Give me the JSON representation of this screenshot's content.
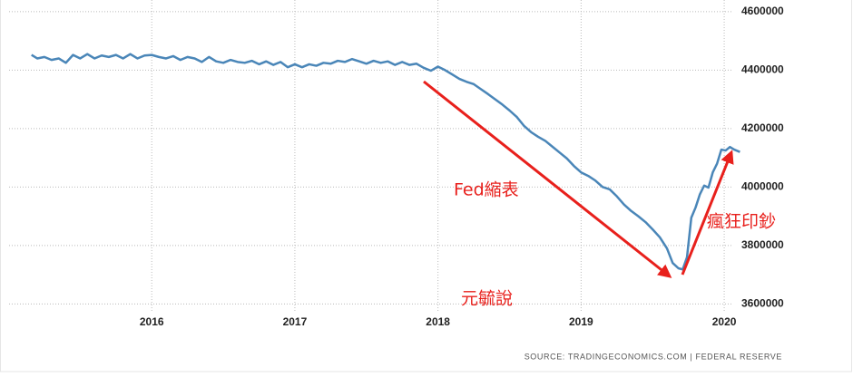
{
  "chart_data": {
    "type": "line",
    "x": [
      2015.16,
      2015.2,
      2015.25,
      2015.3,
      2015.35,
      2015.4,
      2015.45,
      2015.5,
      2015.55,
      2015.6,
      2015.65,
      2015.7,
      2015.75,
      2015.8,
      2015.85,
      2015.9,
      2015.95,
      2016.0,
      2016.05,
      2016.1,
      2016.15,
      2016.2,
      2016.25,
      2016.3,
      2016.35,
      2016.4,
      2016.45,
      2016.5,
      2016.55,
      2016.6,
      2016.65,
      2016.7,
      2016.75,
      2016.8,
      2016.85,
      2016.9,
      2016.95,
      2017.0,
      2017.05,
      2017.1,
      2017.15,
      2017.2,
      2017.25,
      2017.3,
      2017.35,
      2017.4,
      2017.45,
      2017.5,
      2017.55,
      2017.6,
      2017.65,
      2017.7,
      2017.75,
      2017.8,
      2017.85,
      2017.9,
      2017.95,
      2018.0,
      2018.05,
      2018.1,
      2018.15,
      2018.2,
      2018.25,
      2018.3,
      2018.35,
      2018.4,
      2018.45,
      2018.5,
      2018.55,
      2018.6,
      2018.65,
      2018.7,
      2018.75,
      2018.8,
      2018.85,
      2018.9,
      2018.95,
      2019.0,
      2019.05,
      2019.1,
      2019.15,
      2019.2,
      2019.25,
      2019.3,
      2019.35,
      2019.4,
      2019.45,
      2019.5,
      2019.55,
      2019.6,
      2019.64,
      2019.68,
      2019.71,
      2019.74,
      2019.77,
      2019.8,
      2019.83,
      2019.86,
      2019.89,
      2019.92,
      2019.95,
      2019.98,
      2020.01,
      2020.04,
      2020.07,
      2020.11
    ],
    "values": [
      4452000,
      4440000,
      4445000,
      4435000,
      4440000,
      4425000,
      4452000,
      4440000,
      4455000,
      4440000,
      4450000,
      4445000,
      4452000,
      4440000,
      4455000,
      4440000,
      4450000,
      4452000,
      4445000,
      4440000,
      4448000,
      4435000,
      4445000,
      4440000,
      4428000,
      4445000,
      4430000,
      4425000,
      4435000,
      4428000,
      4425000,
      4432000,
      4420000,
      4430000,
      4418000,
      4428000,
      4410000,
      4420000,
      4410000,
      4420000,
      4415000,
      4425000,
      4422000,
      4432000,
      4428000,
      4438000,
      4430000,
      4422000,
      4432000,
      4425000,
      4430000,
      4418000,
      4428000,
      4418000,
      4422000,
      4408000,
      4398000,
      4412000,
      4400000,
      4385000,
      4370000,
      4360000,
      4352000,
      4335000,
      4318000,
      4300000,
      4282000,
      4262000,
      4240000,
      4210000,
      4188000,
      4172000,
      4158000,
      4138000,
      4118000,
      4098000,
      4072000,
      4050000,
      4038000,
      4022000,
      4000000,
      3992000,
      3968000,
      3940000,
      3918000,
      3900000,
      3880000,
      3855000,
      3828000,
      3790000,
      3740000,
      3722000,
      3718000,
      3760000,
      3895000,
      3930000,
      3975000,
      4005000,
      3998000,
      4050000,
      4080000,
      4128000,
      4125000,
      4137000,
      4128000,
      4120000
    ],
    "color": "#4a86b8",
    "xlim": [
      2015.0,
      2020.12
    ],
    "xticks": [
      2016,
      2017,
      2018,
      2019,
      2020
    ],
    "ylim": [
      3570000,
      4640000
    ],
    "yticks": [
      3600000,
      3800000,
      4000000,
      4200000,
      4400000,
      4600000
    ],
    "grid": true,
    "annotations": [
      "Fed縮表",
      "瘋狂印鈔",
      "元毓說"
    ],
    "source": "SOURCE: TRADINGECONOMICS.COM | FEDERAL RESERVE"
  }
}
